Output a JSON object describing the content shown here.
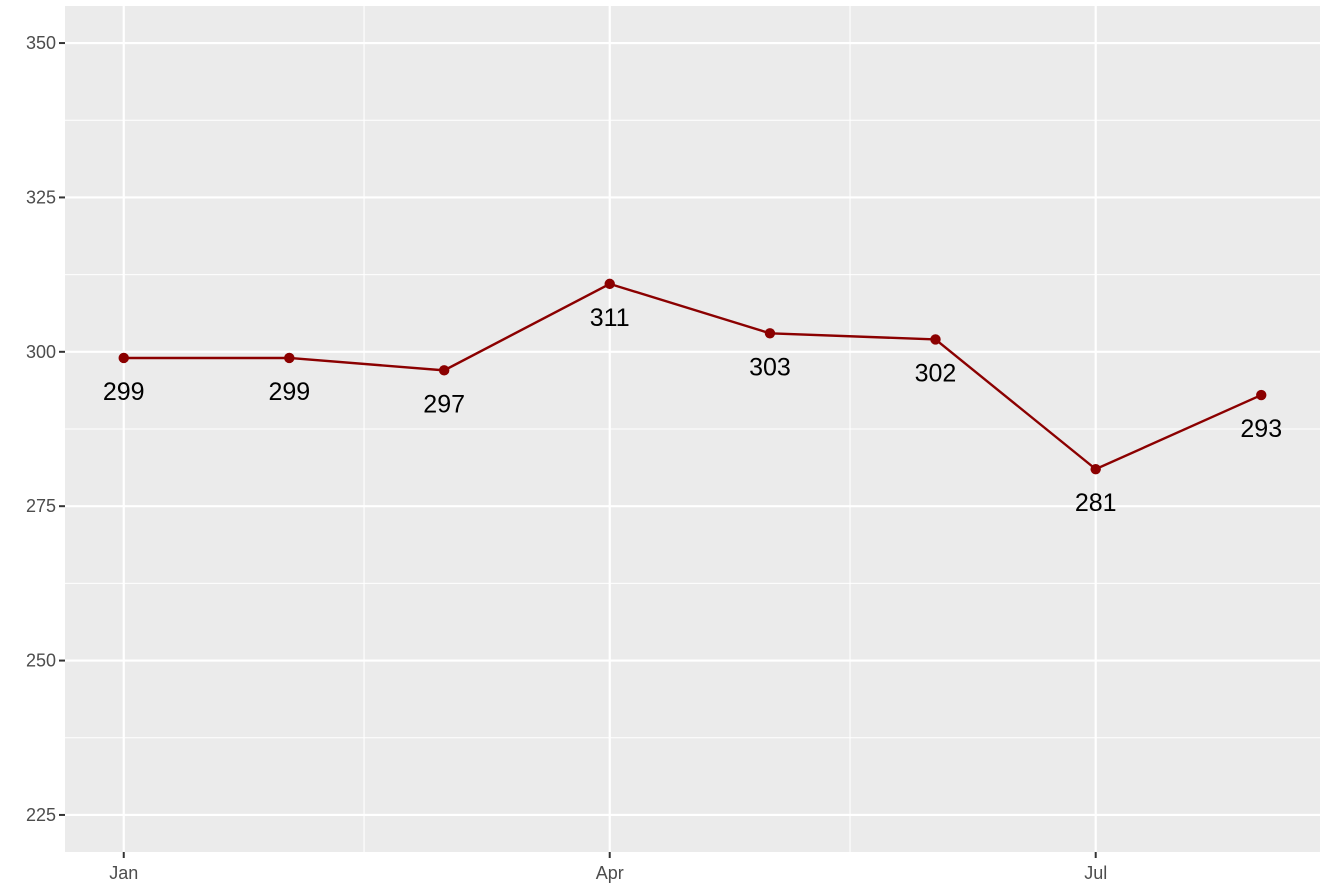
{
  "chart_data": {
    "type": "line",
    "title": "",
    "xlabel": "",
    "ylabel": "",
    "x": [
      "2024-01-01",
      "2024-02-01",
      "2024-03-01",
      "2024-04-01",
      "2024-05-01",
      "2024-06-01",
      "2024-07-01",
      "2024-08-01"
    ],
    "series": [
      {
        "values": [
          299,
          299,
          297,
          311,
          303,
          302,
          281,
          293
        ]
      }
    ],
    "data_labels": [
      "299",
      "299",
      "297",
      "311",
      "303",
      "302",
      "281",
      "293"
    ],
    "xlim": [
      "2023-12-21",
      "2024-08-12"
    ],
    "ylim": [
      219,
      356
    ],
    "x_ticks": [
      {
        "value": "2024-01-01",
        "label": "Jan"
      },
      {
        "value": "2024-04-01",
        "label": "Apr"
      },
      {
        "value": "2024-07-01",
        "label": "Jul"
      }
    ],
    "x_minor_ticks": [
      "2024-02-15",
      "2024-05-16"
    ],
    "y_ticks": [
      {
        "value": 225,
        "label": "225"
      },
      {
        "value": 250,
        "label": "250"
      },
      {
        "value": 275,
        "label": "275"
      },
      {
        "value": 300,
        "label": "300"
      },
      {
        "value": 325,
        "label": "325"
      },
      {
        "value": 350,
        "label": "350"
      }
    ],
    "y_minor_ticks": [
      237.5,
      262.5,
      287.5,
      312.5,
      337.5
    ],
    "grid": true,
    "legend": "none",
    "colors": {
      "line": "#8b0000",
      "point": "#8b0000",
      "panel_background": "#ebebeb",
      "grid": "#ffffff",
      "tick_text": "#4d4d4d",
      "data_label_text": "#000000"
    }
  }
}
